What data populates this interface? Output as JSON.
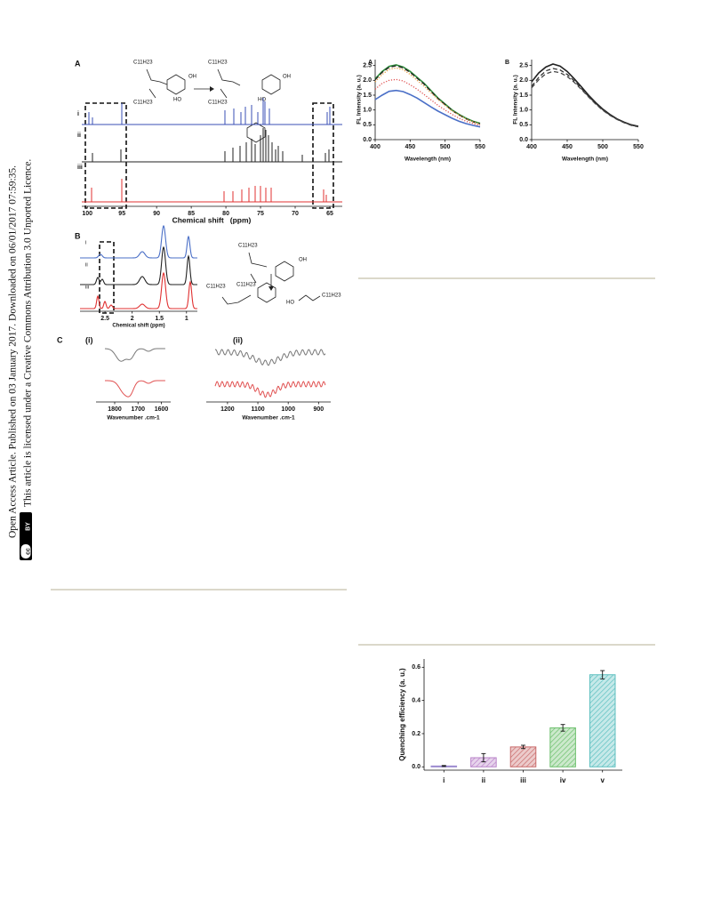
{
  "sidebar": {
    "line1": "Open Access Article. Published on 03 January 2017. Downloaded on 06/01/2017 07:59:35.",
    "line2": "This article is licensed under a Creative Commons Attribution 3.0 Unported Licence.",
    "badge": [
      "cc",
      "BY"
    ]
  },
  "figure1": {
    "panel_a": {
      "label": "A",
      "rows": [
        "i",
        "ii",
        "iii"
      ],
      "xlim": [
        100.8,
        63.2
      ],
      "xticks": [
        100,
        95,
        90,
        85,
        80,
        75,
        70,
        65
      ],
      "xlabel": "Chemical shift   (ppm)"
    },
    "panel_b": {
      "label": "B",
      "rows": [
        "i",
        "ii",
        "iii"
      ],
      "xlim": [
        2.96,
        0.8
      ],
      "xticks": [
        2.5,
        2.0,
        1.5,
        1.0
      ],
      "xlabel": "Chemical shift (ppm)"
    },
    "panel_c": {
      "label": "C",
      "parts": [
        {
          "label": "(i)",
          "xlim": [
            1880,
            1560
          ],
          "xticks": [
            1800,
            1700,
            1600
          ],
          "xlabel": "Wavenumber .cm-1"
        },
        {
          "label": "(ii)",
          "xlim": [
            1270,
            860
          ],
          "xticks": [
            1200,
            1100,
            1000,
            900
          ],
          "xlabel": "Wavenumber .cm-1"
        }
      ]
    },
    "substituent": "C11H23",
    "oh": "OH",
    "ho": "HO"
  },
  "chart_data": [
    {
      "type": "line",
      "panel": "A",
      "xlabel": "Wavelength (nm)",
      "ylabel": "FL Intensity (a. u.)",
      "x": [
        400,
        410,
        420,
        430,
        440,
        450,
        460,
        470,
        480,
        490,
        500,
        510,
        520,
        530,
        540,
        550
      ],
      "xlim": [
        400,
        550
      ],
      "xticks": [
        400,
        450,
        500,
        550
      ],
      "ylim": [
        0,
        2.7
      ],
      "yticks": [
        {
          "value": 0,
          "label": "0.0"
        },
        0.5,
        {
          "value": 1,
          "label": "1.0"
        },
        1.5,
        {
          "value": 2,
          "label": "2.0"
        },
        2.5
      ],
      "series": [
        {
          "color": "#2e8b3a",
          "dash": "solid",
          "values": [
            2.05,
            2.3,
            2.47,
            2.52,
            2.45,
            2.3,
            2.1,
            1.9,
            1.65,
            1.4,
            1.2,
            1.0,
            0.85,
            0.72,
            0.62,
            0.55
          ]
        },
        {
          "color": "#222222",
          "dash": "dashed",
          "values": [
            2.02,
            2.27,
            2.44,
            2.49,
            2.42,
            2.27,
            2.07,
            1.87,
            1.62,
            1.38,
            1.18,
            0.98,
            0.83,
            0.7,
            0.6,
            0.53
          ]
        },
        {
          "color": "#e39a3c",
          "dash": "dotted",
          "values": [
            1.95,
            2.2,
            2.37,
            2.42,
            2.36,
            2.2,
            2.0,
            1.8,
            1.57,
            1.35,
            1.15,
            0.97,
            0.83,
            0.7,
            0.6,
            0.52
          ]
        },
        {
          "color": "#e05050",
          "dash": "dotted",
          "values": [
            1.7,
            1.9,
            2.0,
            2.03,
            1.98,
            1.85,
            1.7,
            1.52,
            1.34,
            1.15,
            1.0,
            0.85,
            0.72,
            0.62,
            0.54,
            0.48
          ]
        },
        {
          "color": "#4a6fc7",
          "dash": "solid",
          "values": [
            1.35,
            1.5,
            1.63,
            1.66,
            1.62,
            1.52,
            1.4,
            1.25,
            1.1,
            0.96,
            0.84,
            0.72,
            0.62,
            0.54,
            0.48,
            0.43
          ]
        }
      ]
    },
    {
      "type": "line",
      "panel": "B",
      "xlabel": "Wavelength (nm)",
      "ylabel": "FL Intensity (a. u.)",
      "x": [
        400,
        410,
        420,
        430,
        440,
        450,
        460,
        470,
        480,
        490,
        500,
        510,
        520,
        530,
        540,
        550
      ],
      "xlim": [
        400,
        550
      ],
      "xticks": [
        400,
        450,
        500,
        550
      ],
      "ylim": [
        0,
        2.7
      ],
      "yticks": [
        {
          "value": 0,
          "label": "0.0"
        },
        0.5,
        {
          "value": 1,
          "label": "1.0"
        },
        1.5,
        {
          "value": 2,
          "label": "2.0"
        },
        2.5
      ],
      "series": [
        {
          "color": "#222222",
          "dash": "solid",
          "values": [
            1.95,
            2.25,
            2.45,
            2.55,
            2.48,
            2.3,
            2.05,
            1.78,
            1.5,
            1.25,
            1.03,
            0.85,
            0.7,
            0.59,
            0.5,
            0.45
          ]
        },
        {
          "color": "#333333",
          "dash": "dashed",
          "values": [
            1.8,
            2.1,
            2.32,
            2.4,
            2.35,
            2.2,
            1.98,
            1.72,
            1.46,
            1.22,
            1.01,
            0.83,
            0.69,
            0.58,
            0.49,
            0.44
          ]
        },
        {
          "color": "#444444",
          "dash": "dashed",
          "values": [
            1.75,
            2.02,
            2.22,
            2.3,
            2.26,
            2.13,
            1.93,
            1.69,
            1.44,
            1.2,
            0.99,
            0.82,
            0.68,
            0.57,
            0.48,
            0.43
          ]
        }
      ]
    },
    {
      "type": "bar",
      "ylabel": "Quenching efficiency (a. u.)",
      "categories": [
        "i",
        "ii",
        "iii",
        "iv",
        "v"
      ],
      "values": [
        0.005,
        0.055,
        0.12,
        0.235,
        0.555
      ],
      "errors": [
        0.003,
        0.025,
        0.01,
        0.02,
        0.025
      ],
      "colors": [
        "#9a88cf",
        "#b983c9",
        "#c96b6b",
        "#6cbf6c",
        "#5cbfbf"
      ],
      "ylim": [
        -0.02,
        0.65
      ],
      "yticks": [
        {
          "value": 0,
          "label": "0.0"
        },
        0.2,
        0.4,
        0.6
      ]
    }
  ]
}
